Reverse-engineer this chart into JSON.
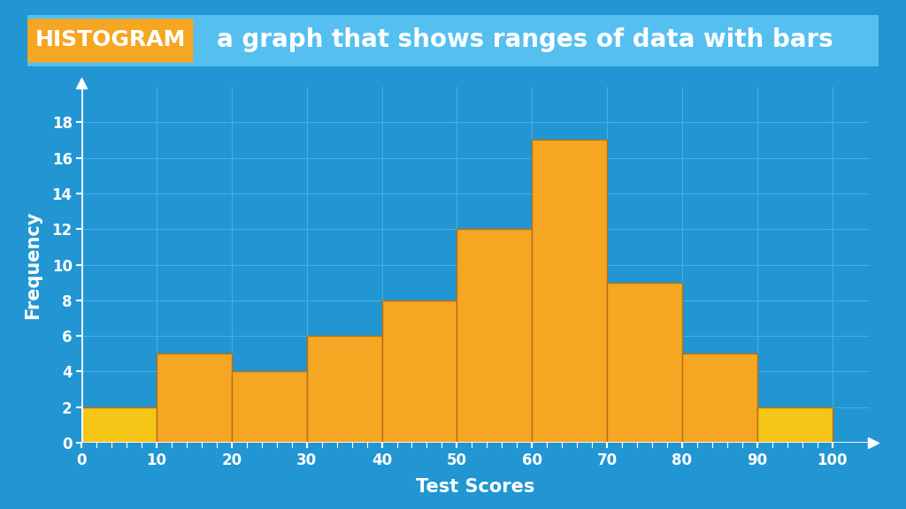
{
  "background_color": "#2196d3",
  "plot_bg_color": "#2196d3",
  "grid_color": "#4ab0e0",
  "title_box_color": "#55c0f0",
  "histogram_label": "HISTOGRAM",
  "histogram_label_bg": "#f5a623",
  "subtitle_text": "a graph that shows ranges of data with bars",
  "bar_edges": [
    0,
    10,
    20,
    30,
    40,
    50,
    60,
    70,
    80,
    90,
    100
  ],
  "bar_heights": [
    2,
    5,
    4,
    6,
    8,
    12,
    17,
    9,
    5,
    2
  ],
  "bar_colors": [
    "#f5c518",
    "#f5a623",
    "#f5a623",
    "#f5a623",
    "#f5a623",
    "#f5a623",
    "#f5a623",
    "#f5a623",
    "#f5a623",
    "#f5c518"
  ],
  "xlabel": "Test Scores",
  "ylabel": "Frequency",
  "xlim": [
    0,
    105
  ],
  "ylim": [
    0,
    20
  ],
  "xticks": [
    0,
    10,
    20,
    30,
    40,
    50,
    60,
    70,
    80,
    90,
    100
  ],
  "yticks": [
    0,
    2,
    4,
    6,
    8,
    10,
    12,
    14,
    16,
    18
  ],
  "tick_color": "#ffffff",
  "label_color": "#ffffff",
  "axis_color": "#ffffff",
  "font_size_label": 15,
  "font_size_tick": 12,
  "font_size_subtitle": 20,
  "font_size_hist_label": 18
}
